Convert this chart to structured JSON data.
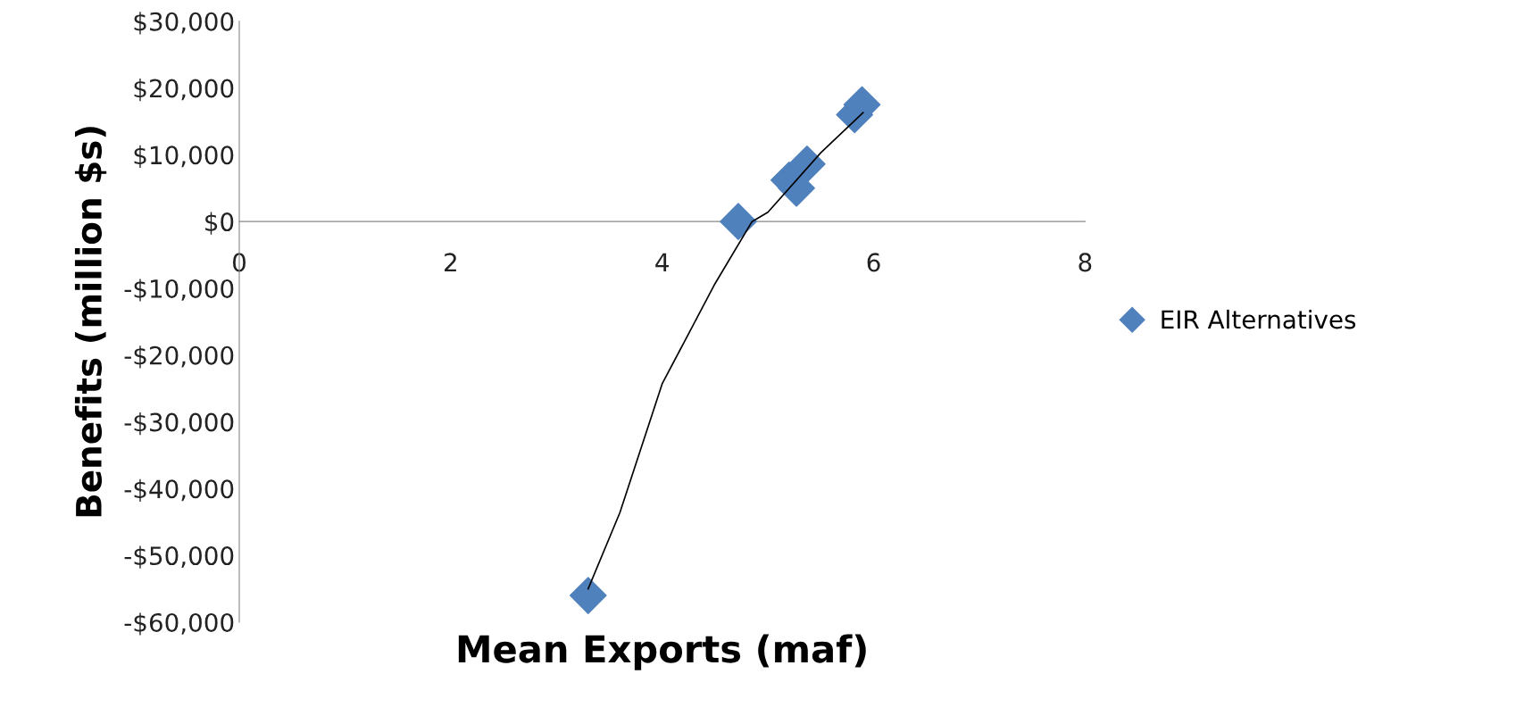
{
  "chart_data": {
    "type": "scatter",
    "xlabel": "Mean Exports (maf)",
    "ylabel": "Benefits (million $s)",
    "xlim": [
      0,
      8
    ],
    "xticks": [
      0,
      2,
      4,
      6,
      8
    ],
    "ylim": [
      -60000,
      30000
    ],
    "yticks": [
      {
        "value": -60000,
        "label": "-$60,000"
      },
      {
        "value": -50000,
        "label": "-$50,000"
      },
      {
        "value": -40000,
        "label": "-$40,000"
      },
      {
        "value": -30000,
        "label": "-$30,000"
      },
      {
        "value": -20000,
        "label": "-$20,000"
      },
      {
        "value": -10000,
        "label": "-$10,000"
      },
      {
        "value": 0,
        "label": "$0"
      },
      {
        "value": 10000,
        "label": "$10,000"
      },
      {
        "value": 20000,
        "label": "$20,000"
      },
      {
        "value": 30000,
        "label": "$30,000"
      }
    ],
    "grid": false,
    "legend": "right",
    "marker": "diamond",
    "series": [
      {
        "name": "EIR Alternatives",
        "color": "#4f81bd",
        "x": [
          3.3,
          4.72,
          5.2,
          5.27,
          5.37,
          5.82,
          5.89
        ],
        "values": [
          -56000,
          0,
          6200,
          5000,
          8600,
          16000,
          17500
        ]
      },
      {
        "type": "line",
        "color": "#000000",
        "marker": "none",
        "x": [
          3.3,
          3.6,
          4.0,
          4.5,
          4.85,
          5.0,
          5.5,
          5.9
        ],
        "values": [
          -55000,
          -43600,
          -24300,
          -9300,
          0,
          1400,
          10300,
          16300
        ]
      }
    ]
  }
}
